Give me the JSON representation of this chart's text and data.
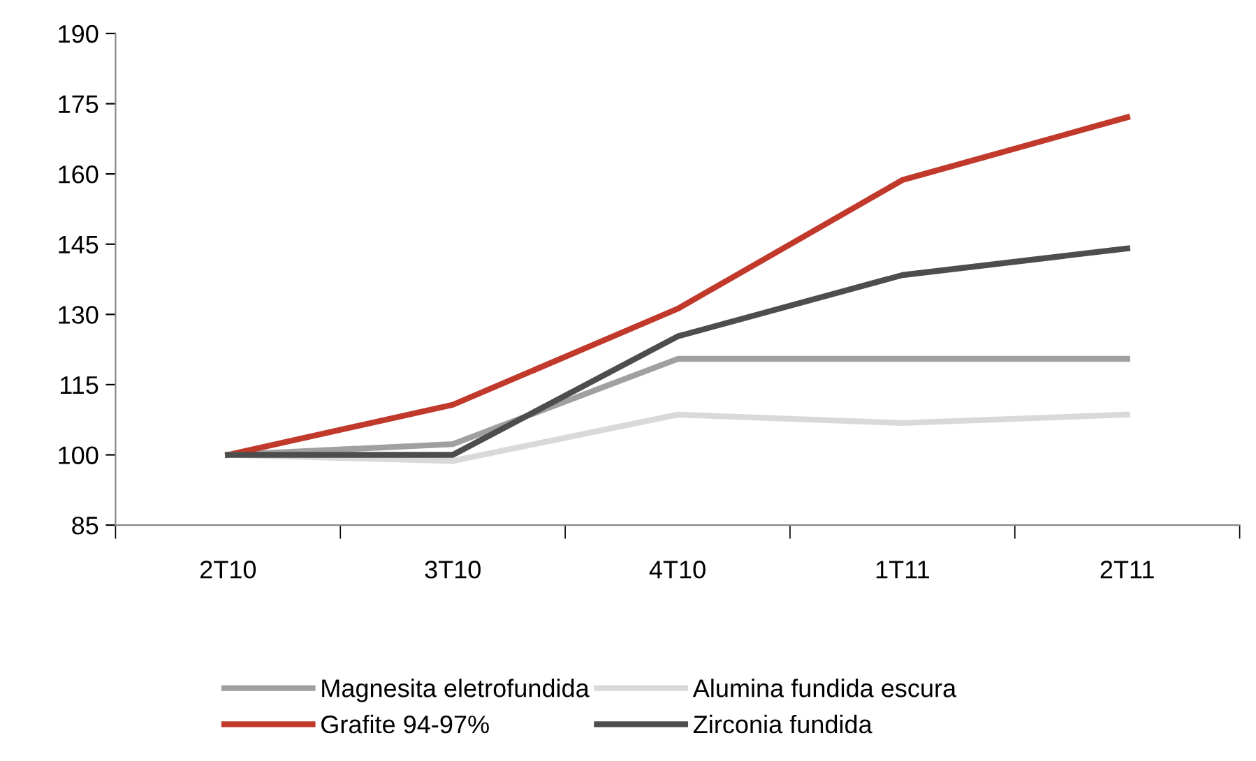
{
  "chart_data": {
    "type": "line",
    "categories": [
      "2T10",
      "3T10",
      "4T10",
      "1T11",
      "2T11"
    ],
    "series": [
      {
        "name": "Magnesita eletrofundida",
        "color": "#a0a0a0",
        "values": [
          100,
          102.3,
          120.5,
          120.5,
          120.5
        ]
      },
      {
        "name": "Grafite 94-97%",
        "color": "#c0392b",
        "values": [
          100,
          110.7,
          131.2,
          158.7,
          172.1
        ]
      },
      {
        "name": "Alumina fundida escura",
        "color": "#d9d9d9",
        "values": [
          100,
          98.7,
          108.6,
          106.8,
          108.6
        ]
      },
      {
        "name": "Zirconia fundida",
        "color": "#4d4d4d",
        "values": [
          100,
          100,
          125.3,
          138.4,
          144.1
        ]
      }
    ],
    "ylim": [
      85,
      190
    ],
    "yticks": [
      85,
      100,
      115,
      130,
      145,
      160,
      175,
      190
    ],
    "grid": false,
    "legend": "bottom",
    "marker": "none",
    "line_style": "solid"
  }
}
